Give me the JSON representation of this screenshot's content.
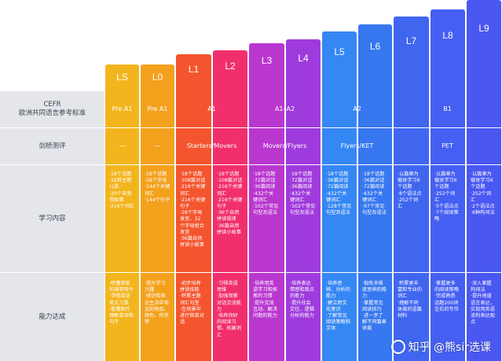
{
  "levels": [
    {
      "label": "LS",
      "color": "#f3b51d"
    },
    {
      "label": "L0",
      "color": "#f3a11d"
    },
    {
      "label": "L1",
      "color": "#f4552e"
    },
    {
      "label": "L2",
      "color": "#f12f6c"
    },
    {
      "label": "L3",
      "color": "#b937cf"
    },
    {
      "label": "L4",
      "color": "#9f3bdc"
    },
    {
      "label": "L5",
      "color": "#3587f3"
    },
    {
      "label": "L6",
      "color": "#3777ef"
    },
    {
      "label": "L7",
      "color": "#4066f0"
    },
    {
      "label": "L8",
      "color": "#455ff2"
    },
    {
      "label": "L9",
      "color": "#4a58f1"
    }
  ],
  "row_labels": {
    "cefr": "CEFR\n欧洲共同语言参考标准",
    "cambridge": "剑桥测评",
    "content": "学习内容",
    "ability": "能力达成"
  },
  "cefr_cells": [
    "Pre A1",
    "Pre A1",
    "A1",
    "A1–A2",
    "A2",
    "B1"
  ],
  "cambridge_cells": [
    "—",
    "—",
    "Starters/Movers",
    "Movers/Flyers",
    "Flyers/KET",
    "PET"
  ],
  "content_cells": [
    "·18个话题\n·18首主题\n 儿歌\n·20个自我\n 视故事\n·216个词汇",
    "·18个话题\n·28个字母\n·144个关键\n 词汇\n·144个句子",
    "·18个话题\n·108篇对话\n·216个关键\n 词汇\n·216个关键\n 句子\n·28个字母\n 发音，32\n 个字母组合\n 发音\n·36篇自然\n 拼读小故事",
    "·18个话题\n·108篇对话\n·216个关键\n 词汇\n·216个关键\n 句子\n·36个自然\n 拼读规律\n·36篇自然\n 拼读小故事",
    "·18个话题\n·72篇对话\n·36篇阅读\n·432个关\n 键词汇\n·102个常见\n 句型及语法",
    "·18个话题\n·72篇对话\n·36篇阅读\n·432个关\n 键词汇\n·102个常见\n 句型及语法",
    "·18个话题\n·36篇对话\n·72篇阅读\n·432个关\n 键词汇\n·128个常见\n 句型及语法",
    "·18个话题\n·36篇对话\n·72篇阅读\n·432个关\n 键词汇\n·97个常见\n 句型及语法",
    "·以篇章为\n 载体学习6\n 个话题\n·8个语法点\n·252个词\n 汇",
    "·以篇章为\n 载体学习6\n 个话题\n·252个词\n 汇\n·5个语法点\n·7个阅读策\n 略",
    "·以篇章为\n 载体学习6\n 个话题\n·252个词\n 汇\n·2个语法点\n·6种构词法"
  ],
  "ability_cells": [
    "·听懂简单\n 的课堂指令\n·学唱英语\n 英文儿歌\n·看懂图片\n 理解单词和\n 句子",
    "·提升学习\n 兴趣\n·辨识和表\n 达生活中常\n 见的物品、\n 颜色、形状\n 等",
    "·初步培养\n 拼读技能\n·积累主题\n 词汇句型\n·在场景中\n 进行简单对\n 话",
    "·习得英语\n 思维\n·加强领掌\n 对话交流能\n 力\n·培养良好\n 的阅读习\n 惯、拓展词\n 汇",
    "·培养用英\n 语学习和探\n 索的习惯\n·提升交流\n 互动、解决\n 问题的能力",
    "·培养表达\n 情感和观点\n 的能力\n·提升社会\n 交往、逻辑\n 分析的能力",
    "·培养思\n 辨、分析的\n 能力\n·建立跨文\n 化意识\n·了解常见\n 阅读策略和\n 文体",
    "·锻炼多维\n 度思辨的能\n 力\n·掌握常见\n 阅读技巧\n·进一步了\n 解不同篇章\n 体裁",
    "·积累更丰\n 富和专业的\n 词汇\n·理解不同\n 体裁的语篇\n 材料",
    "·掌握更多\n 的阅读策略\n·完成熟悉\n 话题200词\n 左右的写作",
    "·深入掌握\n 构词法\n·提升地道\n 语言表达，\n 实现用英语\n 流利表达观\n 点"
  ],
  "watermark": "知乎 @熊sir选课"
}
